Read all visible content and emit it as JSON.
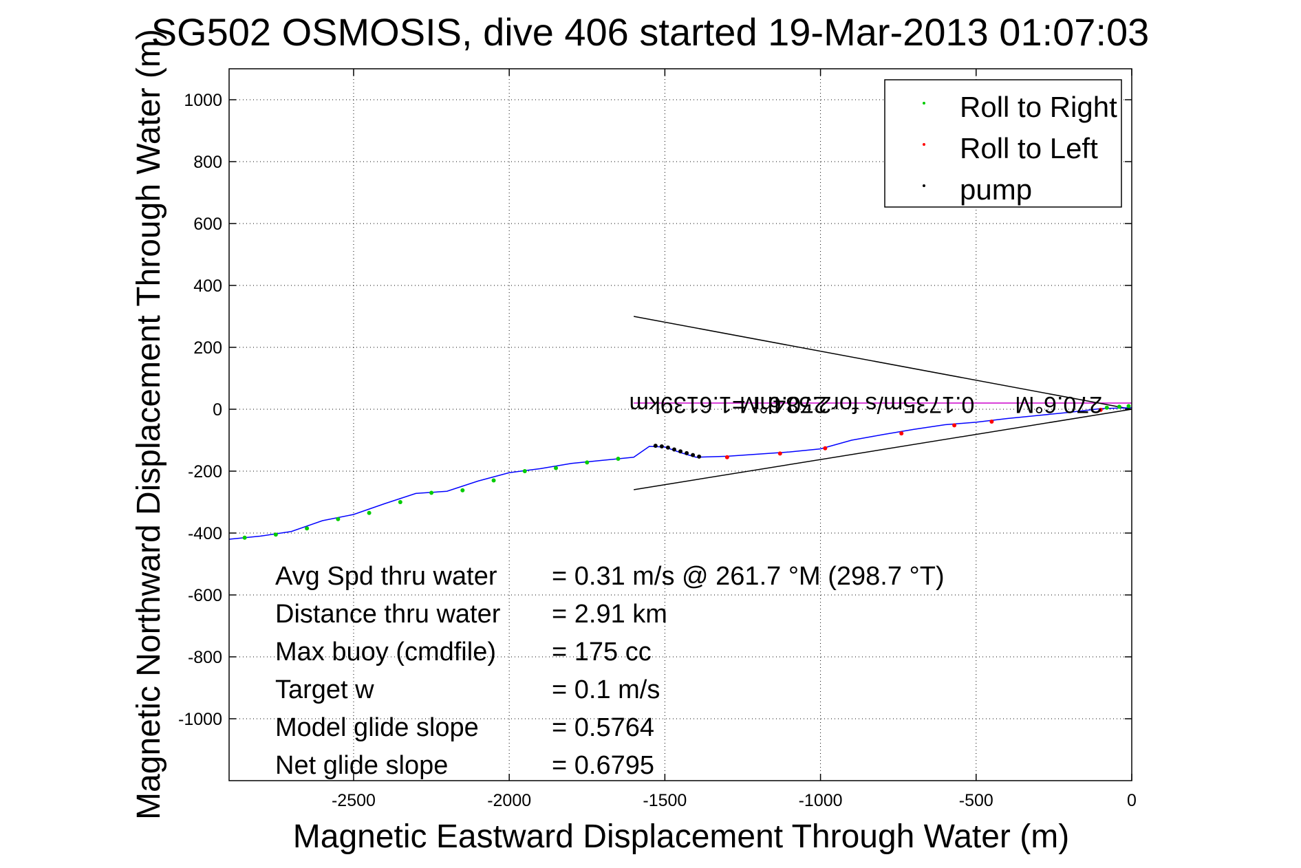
{
  "chart_data": {
    "type": "line",
    "title": "SG502 OSMOSIS, dive 406 started 19-Mar-2013 01:07:03",
    "xlabel": "Magnetic Eastward Displacement Through Water (m)",
    "ylabel": "Magnetic Northward Displacement Through Water (m)",
    "xlim": [
      -2900,
      0
    ],
    "ylim": [
      -1200,
      1100
    ],
    "x_ticks": [
      -2500,
      -2000,
      -1500,
      -1000,
      -500,
      0
    ],
    "y_ticks": [
      1000,
      800,
      600,
      400,
      200,
      0,
      -200,
      -400,
      -600,
      -800,
      -1000
    ],
    "grid": true,
    "grid_style": "dotted",
    "legend": {
      "placement": "top-right",
      "entries": [
        {
          "label": "Roll to Right",
          "color": "#00cc00"
        },
        {
          "label": "Roll to Left",
          "color": "#ff0000"
        },
        {
          "label": "pump",
          "color": "#000000"
        }
      ]
    },
    "track": {
      "color": "#0000ff",
      "x": [
        -2900,
        -2800,
        -2700,
        -2600,
        -2500,
        -2400,
        -2300,
        -2200,
        -2100,
        -2000,
        -1900,
        -1800,
        -1700,
        -1600,
        -1550,
        -1500,
        -1450,
        -1400,
        -1300,
        -1200,
        -1100,
        -1000,
        -900,
        -800,
        -700,
        -600,
        -500,
        -400,
        -300,
        -200,
        -100,
        0
      ],
      "y": [
        -420,
        -410,
        -395,
        -360,
        -340,
        -305,
        -272,
        -265,
        -232,
        -205,
        -192,
        -175,
        -165,
        -155,
        -120,
        -122,
        -140,
        -155,
        -152,
        -145,
        -138,
        -128,
        -100,
        -82,
        -65,
        -50,
        -42,
        -30,
        -20,
        -10,
        2,
        5
      ]
    },
    "roll_right": {
      "x": [
        -2850,
        -2750,
        -2650,
        -2550,
        -2450,
        -2350,
        -2250,
        -2150,
        -2050,
        -1950,
        -1850,
        -1750,
        -1650,
        -80,
        -40,
        -10
      ],
      "y": [
        -415,
        -405,
        -385,
        -355,
        -335,
        -300,
        -270,
        -262,
        -230,
        -200,
        -190,
        -172,
        -160,
        5,
        8,
        10
      ]
    },
    "roll_left": {
      "x": [
        -1300,
        -1130,
        -985,
        -740,
        -570,
        -450,
        -100
      ],
      "y": [
        -155,
        -143,
        -126,
        -78,
        -52,
        -40,
        -2
      ]
    },
    "pump": {
      "x": [
        -1530,
        -1510,
        -1490,
        -1470,
        -1450,
        -1430,
        -1410,
        -1390
      ],
      "y": [
        -118,
        -120,
        -124,
        -130,
        -136,
        -142,
        -148,
        -153
      ]
    },
    "cone_lines": [
      {
        "x": [
          -1600,
          0
        ],
        "y": [
          300,
          0
        ],
        "color": "#000000"
      },
      {
        "x": [
          -1600,
          0
        ],
        "y": [
          -260,
          0
        ],
        "color": "#000000"
      }
    ],
    "magenta_line": {
      "x": [
        -1600,
        0
      ],
      "y": [
        20,
        20
      ],
      "color": "#cc00cc"
    },
    "annotations": [
      {
        "text": "270.6°M",
        "x": -1120,
        "y": 40,
        "rotation": 180
      },
      {
        "text": "0.1735m/s for2.584hr =1.6139km",
        "x": -1060,
        "y": 40,
        "rotation": 180
      },
      {
        "text": "270.6°M",
        "x": -235,
        "y": 40,
        "rotation": 180
      }
    ],
    "info_box": {
      "rows": [
        {
          "label": "Avg Spd thru water",
          "value": "=  0.31 m/s @ 261.7 °M (298.7 °T)"
        },
        {
          "label": "Distance thru water",
          "value": "=  2.91 km"
        },
        {
          "label": "Max buoy (cmdfile)",
          "value": "= 175 cc"
        },
        {
          "label": "Target w",
          "value": "= 0.1 m/s"
        },
        {
          "label": "Model glide slope",
          "value": "= 0.5764"
        },
        {
          "label": "Net glide slope",
          "value": "= 0.6795"
        }
      ]
    }
  }
}
